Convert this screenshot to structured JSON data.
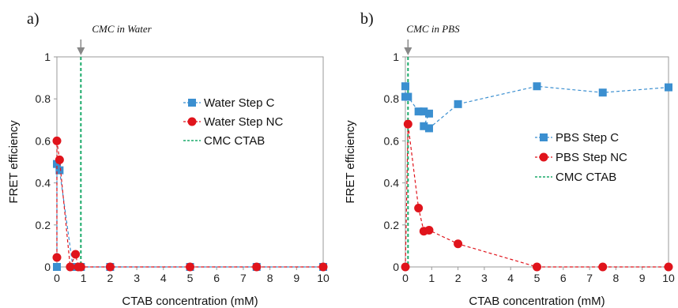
{
  "colors": {
    "step_c": "#3b8fd0",
    "step_nc": "#e0141c",
    "cmc": "#1aaa6a",
    "arrow": "#888888",
    "frame": "#999999"
  },
  "chart_data": [
    {
      "type": "scatter",
      "panel_label": "a)",
      "annotation": "CMC in Water",
      "xlabel": "CTAB concentration (mM)",
      "ylabel": "FRET efficiency",
      "xlim": [
        0,
        10
      ],
      "ylim": [
        0,
        1
      ],
      "xticks": [
        "0",
        "1",
        "2",
        "3",
        "4",
        "5",
        "6",
        "7",
        "8",
        "9",
        "10"
      ],
      "yticks": [
        "0",
        "0.2",
        "0.4",
        "0.6",
        "0.8",
        "1"
      ],
      "grid": false,
      "legend_position": "upper-right",
      "series": [
        {
          "name": "Water Step C",
          "marker": "square",
          "x": [
            0,
            0,
            0.1,
            0.6,
            0.8,
            0.9,
            2,
            5,
            7.5,
            10
          ],
          "y": [
            0,
            0.49,
            0.46,
            0,
            0,
            0,
            0,
            0,
            0,
            0
          ]
        },
        {
          "name": "Water Step NC",
          "marker": "circle",
          "x": [
            0,
            0,
            0.1,
            0.5,
            0.7,
            0.8,
            0.9,
            2,
            5,
            7.5,
            10
          ],
          "y": [
            0.045,
            0.6,
            0.51,
            0,
            0.06,
            0,
            0,
            0,
            0,
            0,
            0
          ]
        }
      ],
      "vline": {
        "name": "CMC CTAB",
        "x": 0.9
      }
    },
    {
      "type": "scatter",
      "panel_label": "b)",
      "annotation": "CMC in PBS",
      "xlabel": "CTAB concentration (mM)",
      "ylabel": "FRET efficiency",
      "xlim": [
        0,
        10
      ],
      "ylim": [
        0,
        1
      ],
      "xticks": [
        "0",
        "1",
        "2",
        "3",
        "4",
        "5",
        "6",
        "7",
        "8",
        "9",
        "10"
      ],
      "yticks": [
        "0",
        "0.2",
        "0.4",
        "0.6",
        "0.8",
        "1"
      ],
      "grid": false,
      "legend_position": "center-right",
      "series": [
        {
          "name": "PBS Step C",
          "marker": "square",
          "x": [
            0,
            0,
            0.1,
            0.5,
            0.7,
            0.9,
            0.7,
            0.9,
            2,
            5,
            7.5,
            10
          ],
          "y": [
            0.86,
            0.81,
            0.81,
            0.74,
            0.74,
            0.73,
            0.67,
            0.66,
            0.775,
            0.86,
            0.83,
            0.855
          ]
        },
        {
          "name": "PBS Step  NC",
          "marker": "circle",
          "x": [
            0,
            0.1,
            0.5,
            0.7,
            0.9,
            2,
            5,
            7.5,
            10
          ],
          "y": [
            0,
            0.68,
            0.28,
            0.17,
            0.175,
            0.11,
            0,
            0,
            0
          ]
        }
      ],
      "vline": {
        "name": "CMC CTAB",
        "x": 0.1
      }
    }
  ]
}
